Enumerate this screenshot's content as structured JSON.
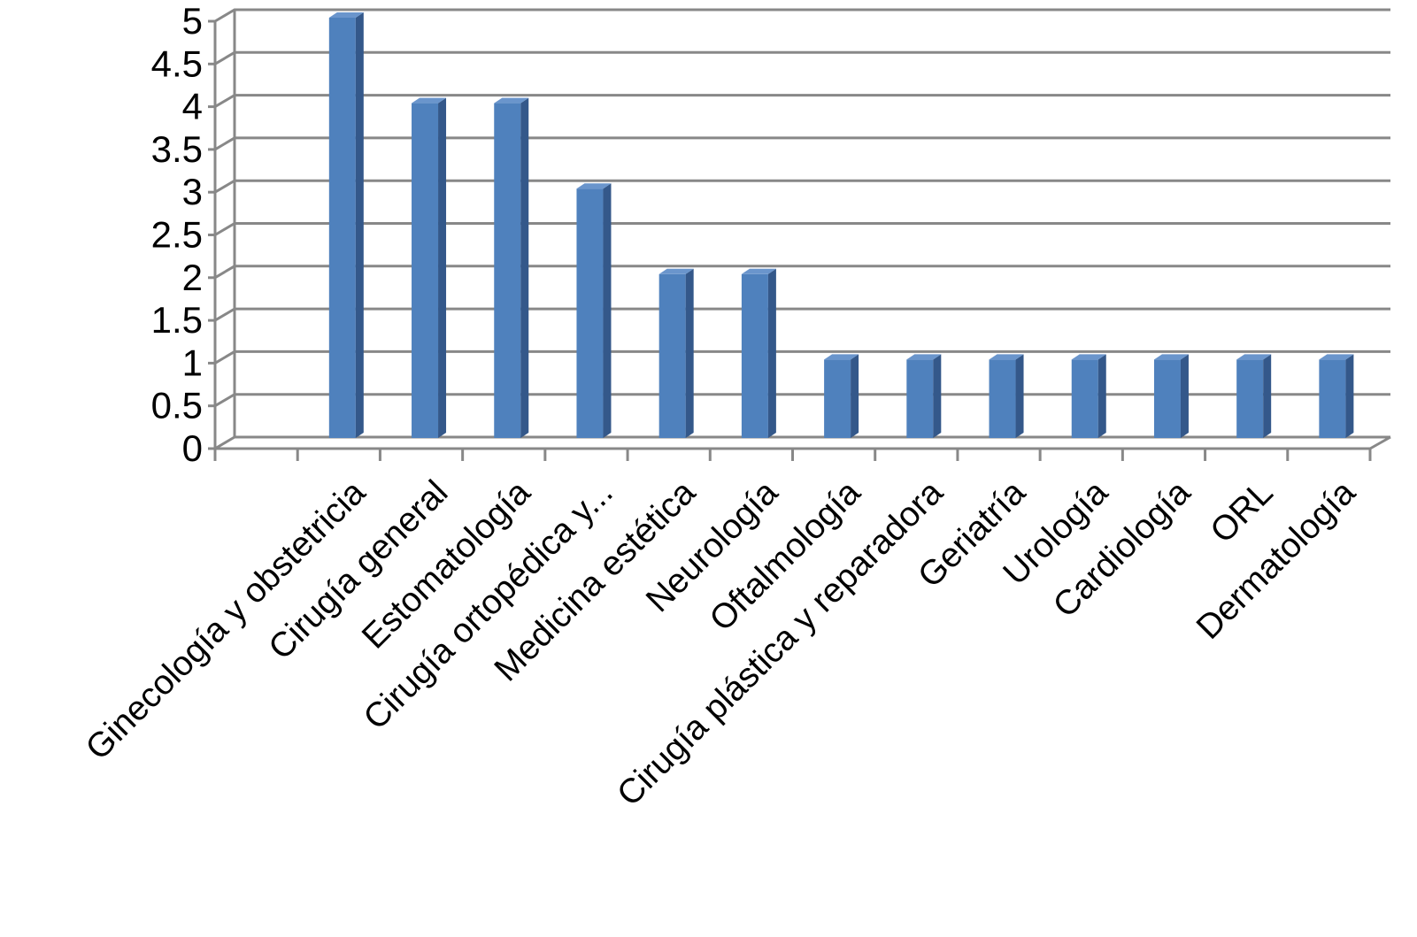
{
  "chart_data": {
    "type": "bar",
    "title": "",
    "xlabel": "",
    "ylabel": "",
    "ylim": [
      0,
      5
    ],
    "yticks": [
      "0",
      "0.5",
      "1",
      "1.5",
      "2",
      "2.5",
      "3",
      "3.5",
      "4",
      "4.5",
      "5"
    ],
    "grid": true,
    "legend": "none",
    "bar_color": "#4f81bd",
    "categories": [
      "Ginecología y obstetricia",
      "Cirugía general",
      "Estomatología",
      "Cirugía ortopédica y...",
      "Medicina estética",
      "Neurología",
      "Oftalmología",
      "Cirugía plástica y reparadora",
      "Geriatría",
      "Urología",
      "Cardiología",
      "ORL",
      "Dermatología"
    ],
    "values": [
      5,
      4,
      4,
      3,
      2,
      2,
      1,
      1,
      1,
      1,
      1,
      1,
      1
    ]
  }
}
